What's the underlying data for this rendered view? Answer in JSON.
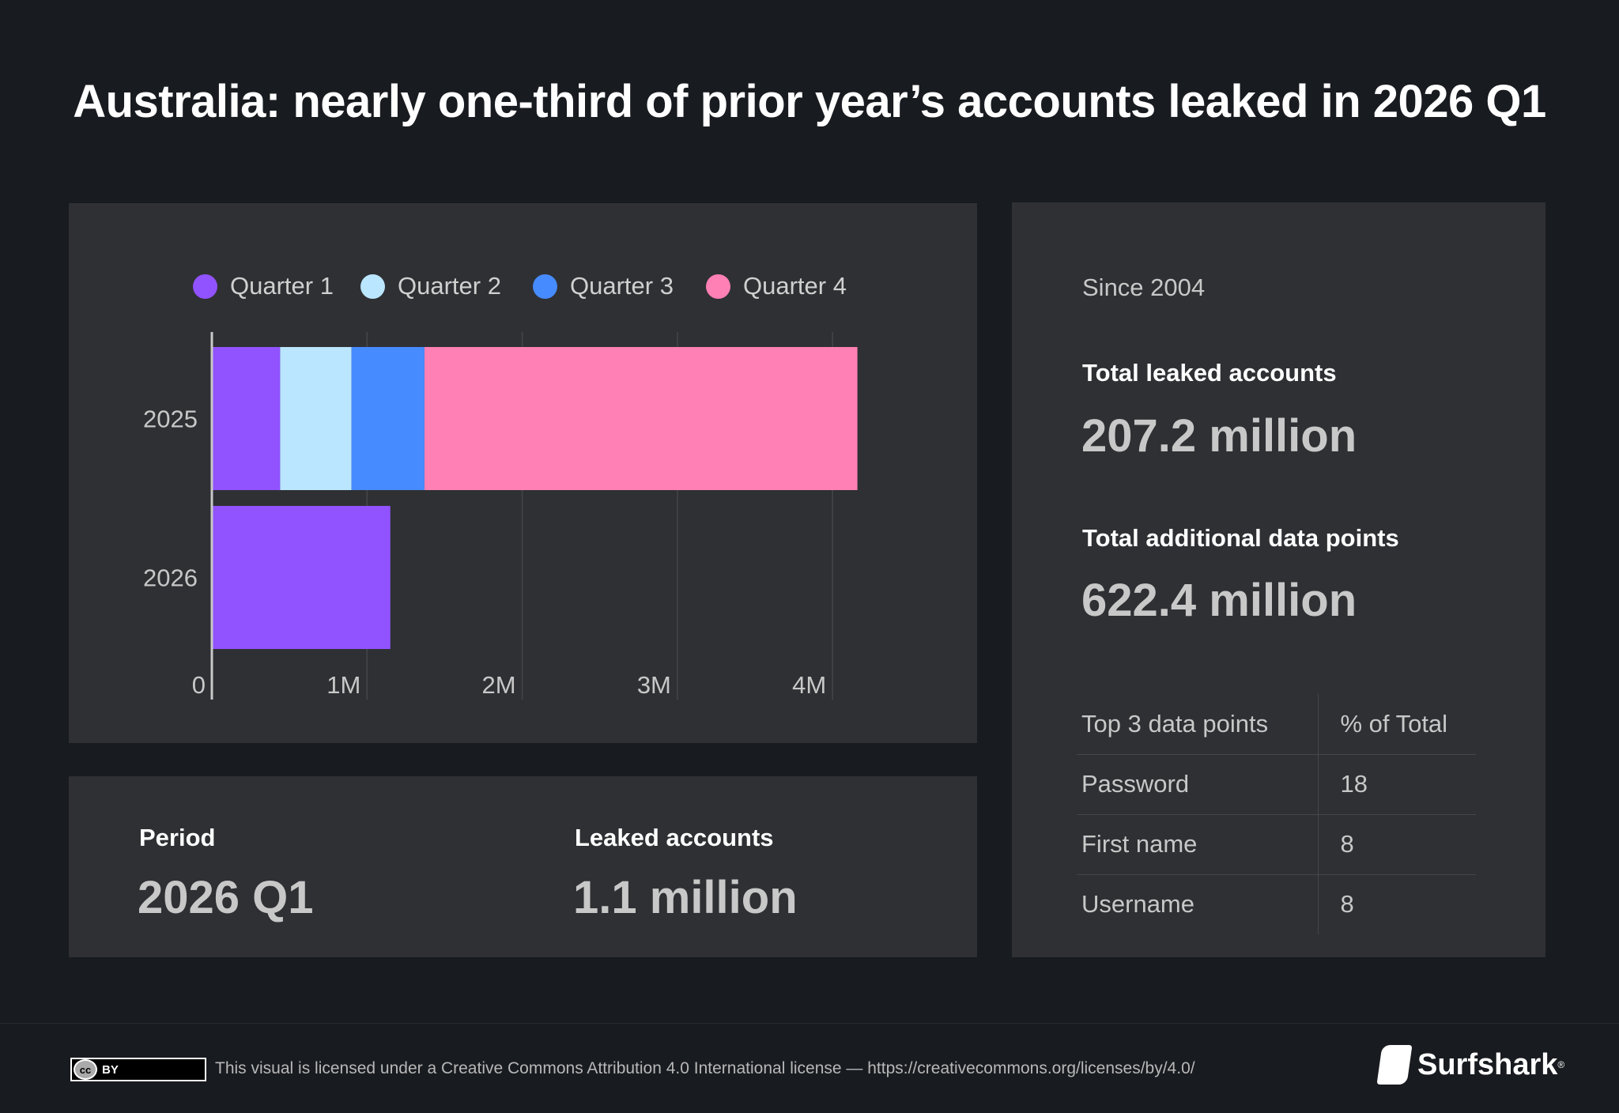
{
  "title": "Australia: nearly one-third of prior year’s accounts leaked in 2026 Q1",
  "chart_data": {
    "type": "bar",
    "orientation": "horizontal",
    "stacked": true,
    "categories": [
      "2025",
      "2026"
    ],
    "series": [
      {
        "name": "Quarter 1",
        "color": "#9152ff",
        "values": [
          0.44,
          1.15
        ]
      },
      {
        "name": "Quarter 2",
        "color": "#bae6ff",
        "values": [
          0.46,
          0
        ]
      },
      {
        "name": "Quarter 3",
        "color": "#468bff",
        "values": [
          0.47,
          0
        ]
      },
      {
        "name": "Quarter 4",
        "color": "#ff80b4",
        "values": [
          2.79,
          0
        ]
      }
    ],
    "unit": "million accounts",
    "xlim": [
      0,
      4.3
    ],
    "xticks": [
      0,
      1,
      2,
      3,
      4
    ],
    "xtick_labels": [
      "0",
      "1M",
      "2M",
      "3M",
      "4M"
    ],
    "grid": true,
    "legend": "top"
  },
  "summary": {
    "period_label": "Period",
    "period_value": "2026 Q1",
    "leaked_label": "Leaked accounts",
    "leaked_value": "1.1 million"
  },
  "stats": {
    "since": "Since 2004",
    "total_label": "Total leaked accounts",
    "total_value": "207.2 million",
    "additional_label": "Total additional data points",
    "additional_value": "622.4 million",
    "table": {
      "headers": [
        "Top 3 data points",
        "% of Total"
      ],
      "rows": [
        [
          "Password",
          "18"
        ],
        [
          "First name",
          "8"
        ],
        [
          "Username",
          "8"
        ]
      ]
    }
  },
  "footer": {
    "cc_badge": "BY",
    "cc_logo": "cc",
    "license": "This visual is licensed under a Creative Commons Attribution 4.0 International license — https://creativecommons.org/licenses/by/4.0/",
    "brand": "Surfshark",
    "brand_mark": "®"
  }
}
